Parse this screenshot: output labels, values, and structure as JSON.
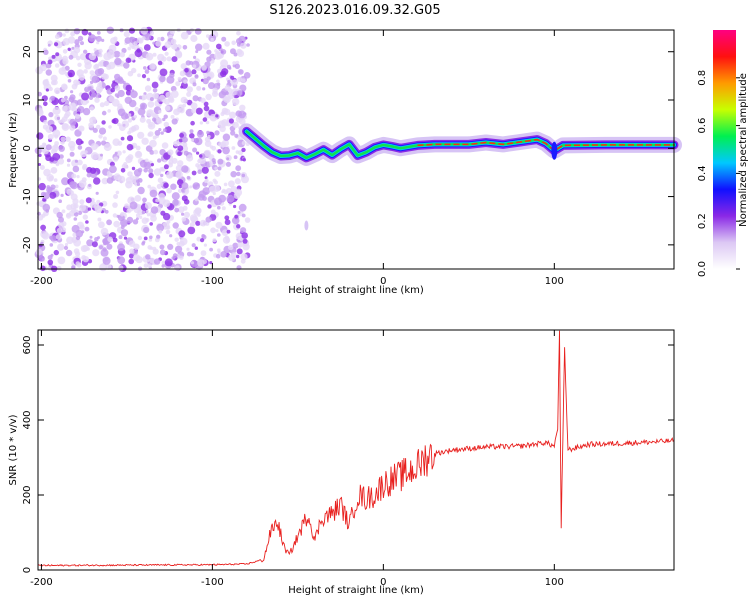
{
  "title": "S126.2023.016.09.32.G05",
  "charts": [
    {
      "type": "heatmap",
      "xlabel": "Height of straight line (km)",
      "ylabel": "Frequency (Hz)",
      "xlim": [
        -202,
        170
      ],
      "ylim": [
        -25,
        24.5
      ],
      "xticks": [
        -200,
        -100,
        0,
        100
      ],
      "yticks": [
        -20,
        -10,
        0,
        10,
        20
      ],
      "colorbar": {
        "label": "Normalized spectral amplitude",
        "range": [
          0,
          1
        ],
        "ticks": [
          "0.0",
          "0.2",
          "0.4",
          "0.6",
          "0.8"
        ],
        "tick_values": [
          0,
          0.2,
          0.4,
          0.6,
          0.8
        ],
        "colors": [
          "#ffffff",
          "#dcc8f4",
          "#8a28e6",
          "#1010ff",
          "#00c8ff",
          "#00f050",
          "#c8ff00",
          "#ff9a00",
          "#ff1010",
          "#ff0080"
        ]
      },
      "noise_region": {
        "x": [
          -202,
          -79
        ],
        "freq": [
          -25,
          24.5
        ],
        "amplitude": "low"
      },
      "ridge": [
        {
          "x": -80,
          "f": 3.5
        },
        {
          "x": -75,
          "f": 2.0
        },
        {
          "x": -70,
          "f": 0.5
        },
        {
          "x": -65,
          "f": -0.8
        },
        {
          "x": -60,
          "f": -1.6
        },
        {
          "x": -55,
          "f": -1.5
        },
        {
          "x": -50,
          "f": -1.0
        },
        {
          "x": -45,
          "f": -2.0
        },
        {
          "x": -40,
          "f": -1.2
        },
        {
          "x": -35,
          "f": -0.3
        },
        {
          "x": -30,
          "f": -1.4
        },
        {
          "x": -25,
          "f": -0.2
        },
        {
          "x": -20,
          "f": 0.8
        },
        {
          "x": -15,
          "f": -1.5
        },
        {
          "x": -10,
          "f": -0.8
        },
        {
          "x": -5,
          "f": 0.2
        },
        {
          "x": 0,
          "f": 0.7
        },
        {
          "x": 5,
          "f": 0.4
        },
        {
          "x": 10,
          "f": 0.0
        },
        {
          "x": 20,
          "f": 0.6
        },
        {
          "x": 30,
          "f": 0.8
        },
        {
          "x": 50,
          "f": 0.8
        },
        {
          "x": 60,
          "f": 1.2
        },
        {
          "x": 70,
          "f": 0.8
        },
        {
          "x": 80,
          "f": 1.3
        },
        {
          "x": 90,
          "f": 1.8
        },
        {
          "x": 95,
          "f": 1.0
        },
        {
          "x": 100,
          "f": -0.5
        },
        {
          "x": 105,
          "f": 0.6
        },
        {
          "x": 130,
          "f": 0.7
        },
        {
          "x": 170,
          "f": 0.7
        }
      ],
      "stray_point": {
        "x": -45,
        "f": -16
      }
    },
    {
      "type": "line",
      "xlabel": "Height of straight line (km)",
      "ylabel": "SNR (10 * v/v)",
      "xlim": [
        -202,
        170
      ],
      "ylim": [
        0,
        640
      ],
      "xticks": [
        -200,
        -100,
        0,
        100
      ],
      "yticks": [
        0,
        200,
        400,
        600
      ],
      "color": "#e8201e",
      "series": [
        {
          "x": -202,
          "y": 12
        },
        {
          "x": -150,
          "y": 13
        },
        {
          "x": -100,
          "y": 14
        },
        {
          "x": -80,
          "y": 16
        },
        {
          "x": -70,
          "y": 28
        },
        {
          "x": -66,
          "y": 100
        },
        {
          "x": -62,
          "y": 130
        },
        {
          "x": -58,
          "y": 60
        },
        {
          "x": -55,
          "y": 40
        },
        {
          "x": -50,
          "y": 90
        },
        {
          "x": -44,
          "y": 150
        },
        {
          "x": -40,
          "y": 80
        },
        {
          "x": -36,
          "y": 140
        },
        {
          "x": -30,
          "y": 150
        },
        {
          "x": -25,
          "y": 175
        },
        {
          "x": -20,
          "y": 120
        },
        {
          "x": -15,
          "y": 200
        },
        {
          "x": -10,
          "y": 190
        },
        {
          "x": -5,
          "y": 200
        },
        {
          "x": 0,
          "y": 230
        },
        {
          "x": 10,
          "y": 250
        },
        {
          "x": 20,
          "y": 275
        },
        {
          "x": 25,
          "y": 300
        },
        {
          "x": 30,
          "y": 310
        },
        {
          "x": 40,
          "y": 320
        },
        {
          "x": 60,
          "y": 328
        },
        {
          "x": 80,
          "y": 330
        },
        {
          "x": 95,
          "y": 340
        },
        {
          "x": 100,
          "y": 330
        },
        {
          "x": 102,
          "y": 380
        },
        {
          "x": 103,
          "y": 640
        },
        {
          "x": 104,
          "y": 110
        },
        {
          "x": 106,
          "y": 590
        },
        {
          "x": 108,
          "y": 320
        },
        {
          "x": 120,
          "y": 335
        },
        {
          "x": 140,
          "y": 338
        },
        {
          "x": 160,
          "y": 342
        },
        {
          "x": 170,
          "y": 345
        }
      ]
    }
  ]
}
